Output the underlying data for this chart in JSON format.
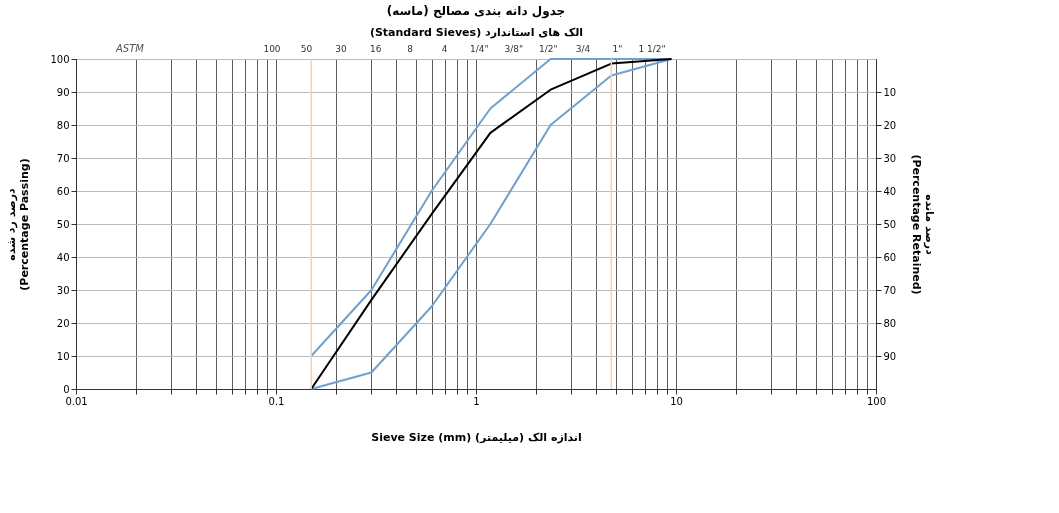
{
  "chart_data": {
    "type": "line",
    "title": "جدول دانه بندی مصالح (ماسه)",
    "xlabel": "Sieve Size (mm)     اندازه الک (میلیمتر)",
    "x2label": "(Standard Sieves)     الک های استاندارد",
    "ylabel": "درصد رد شده\n(Percentage Passing)",
    "y2label": "درصد مانده\n(Percentage Retained)",
    "annotations": [
      "ASTM",
      "100",
      "50",
      "30",
      "16",
      "8",
      "4",
      "1/4\"",
      "3/8\"",
      "1/2\"",
      "3/4",
      "1\"",
      "1 1/2\""
    ],
    "log": "x",
    "grid": true,
    "marker": "none",
    "line_style": "solid",
    "xlim": [
      0.01,
      100
    ],
    "xticks": [
      0.01,
      {
        "value": 0.02,
        "label": null
      },
      {
        "value": 0.03,
        "label": null
      },
      {
        "value": 0.04,
        "label": null
      },
      {
        "value": 0.05,
        "label": null
      },
      {
        "value": 0.06,
        "label": null
      },
      {
        "value": 0.07,
        "label": null
      },
      {
        "value": 0.08,
        "label": null
      },
      {
        "value": 0.09,
        "label": null
      },
      0.1,
      {
        "value": 0.2,
        "label": null
      },
      {
        "value": 0.3,
        "label": null
      },
      {
        "value": 0.4,
        "label": null
      },
      {
        "value": 0.5,
        "label": null
      },
      {
        "value": 0.6,
        "label": null
      },
      {
        "value": 0.7,
        "label": null
      },
      {
        "value": 0.8,
        "label": null
      },
      {
        "value": 0.9,
        "label": null
      },
      1,
      {
        "value": 2,
        "label": null
      },
      {
        "value": 3,
        "label": null
      },
      {
        "value": 4,
        "label": null
      },
      {
        "value": 5,
        "label": null
      },
      {
        "value": 6,
        "label": null
      },
      {
        "value": 7,
        "label": null
      },
      {
        "value": 8,
        "label": null
      },
      {
        "value": 9,
        "label": null
      },
      10,
      {
        "value": 20,
        "label": null
      },
      {
        "value": 30,
        "label": null
      },
      {
        "value": 40,
        "label": null
      },
      {
        "value": 50,
        "label": null
      },
      {
        "value": 60,
        "label": null
      },
      {
        "value": 70,
        "label": null
      },
      {
        "value": 80,
        "label": null
      },
      {
        "value": 90,
        "label": null
      },
      100
    ],
    "ylim": [
      0,
      100
    ],
    "yticks": [
      0,
      10,
      20,
      30,
      40,
      50,
      60,
      70,
      80,
      90,
      100
    ],
    "y2lim": [
      100,
      0
    ],
    "y2ticks": [
      10,
      20,
      30,
      40,
      50,
      60,
      70,
      80,
      90
    ],
    "ref_lines": [
      {
        "axis": "x",
        "value": 0.15,
        "color": "#f5d2b0"
      },
      {
        "axis": "x",
        "value": 4.75,
        "color": "#f5d2b0"
      }
    ],
    "series": [
      {
        "color": "#6fa0d0",
        "x": [
          0.15,
          0.3,
          0.6,
          1.18,
          2.36,
          4.75,
          9.5
        ],
        "values": [
          10,
          30,
          60,
          85,
          100,
          100,
          100
        ]
      },
      {
        "color": "#6fa0d0",
        "x": [
          0.15,
          0.3,
          0.6,
          1.18,
          2.36,
          4.75,
          9.5
        ],
        "values": [
          0,
          5,
          25,
          50,
          80,
          95,
          100
        ]
      },
      {
        "color": "#000000",
        "x": [
          0.15,
          0.3,
          0.6,
          1.18,
          2.36,
          4.75,
          9.5
        ],
        "values": [
          0,
          27,
          53,
          77.6,
          90.7,
          98.6,
          100
        ]
      }
    ]
  }
}
